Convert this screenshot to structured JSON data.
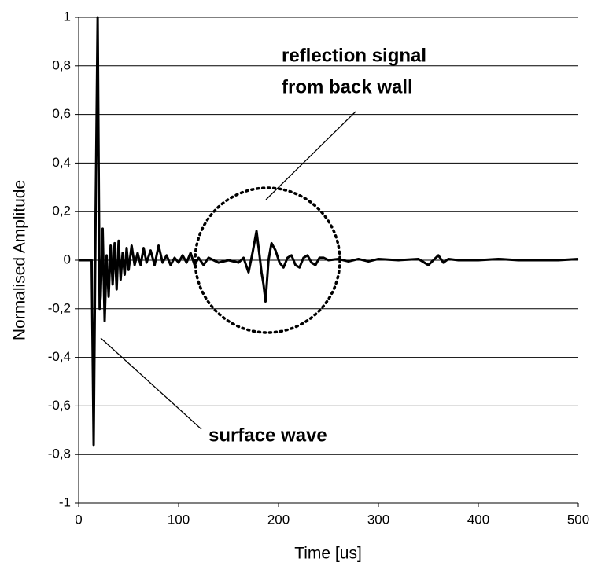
{
  "chart_data": {
    "type": "line",
    "x_label": "Time [us]",
    "y_label": "Normalised Amplitude",
    "annotations": [
      "reflection signal",
      "from back wall",
      "surface wave"
    ],
    "x": [
      0,
      10,
      13,
      15,
      17,
      19,
      21,
      22,
      24,
      26,
      28,
      30,
      32,
      34,
      36,
      38,
      40,
      42,
      44,
      46,
      48,
      50,
      53,
      56,
      59,
      62,
      65,
      68,
      72,
      76,
      80,
      84,
      88,
      92,
      96,
      100,
      104,
      108,
      112,
      116,
      120,
      125,
      130,
      140,
      150,
      160,
      165,
      170,
      174,
      178,
      181,
      183,
      185,
      187,
      190,
      193,
      197,
      201,
      205,
      209,
      213,
      217,
      221,
      225,
      229,
      233,
      237,
      241,
      245,
      250,
      260,
      270,
      280,
      290,
      300,
      320,
      340,
      350,
      355,
      360,
      365,
      370,
      380,
      400,
      420,
      440,
      460,
      480,
      500
    ],
    "series": [
      {
        "color": "#000000",
        "values": [
          0,
          0,
          0,
          -0.76,
          0.2,
          1.0,
          -0.2,
          -0.15,
          0.13,
          -0.25,
          0.02,
          -0.15,
          0.06,
          -0.1,
          0.07,
          -0.12,
          0.08,
          -0.08,
          0.03,
          -0.06,
          0.05,
          -0.04,
          0.06,
          -0.02,
          0.03,
          -0.02,
          0.05,
          -0.01,
          0.04,
          -0.02,
          0.06,
          -0.01,
          0.02,
          -0.02,
          0.01,
          -0.01,
          0.02,
          -0.01,
          0.03,
          -0.02,
          0.01,
          -0.02,
          0.01,
          -0.01,
          0.0,
          -0.01,
          0.01,
          -0.05,
          0.03,
          0.12,
          0.02,
          -0.05,
          -0.1,
          -0.17,
          0.0,
          0.07,
          0.04,
          -0.01,
          -0.03,
          0.01,
          0.02,
          -0.02,
          -0.03,
          0.01,
          0.02,
          -0.01,
          -0.02,
          0.01,
          0.01,
          0,
          0.005,
          -0.005,
          0.005,
          -0.005,
          0.005,
          0,
          0.005,
          -0.02,
          0,
          0.02,
          -0.01,
          0.005,
          0,
          0,
          0.005,
          0,
          0,
          0,
          0.005
        ]
      }
    ],
    "xlim": [
      0,
      500
    ],
    "xticks": [
      0,
      100,
      200,
      300,
      400,
      500
    ],
    "ylim": [
      -1,
      1
    ],
    "yticks": [
      -1,
      {
        "value": -0.8,
        "label": "-0,8"
      },
      {
        "value": -0.6,
        "label": "-0,6"
      },
      {
        "value": -0.4,
        "label": "-0,4"
      },
      {
        "value": -0.2,
        "label": "-0,2"
      },
      0,
      {
        "value": 0.2,
        "label": "0,2"
      },
      {
        "value": 0.4,
        "label": "0,4"
      },
      {
        "value": 0.6,
        "label": "0,6"
      },
      {
        "value": 0.8,
        "label": "0,8"
      },
      1
    ],
    "grid": true
  }
}
